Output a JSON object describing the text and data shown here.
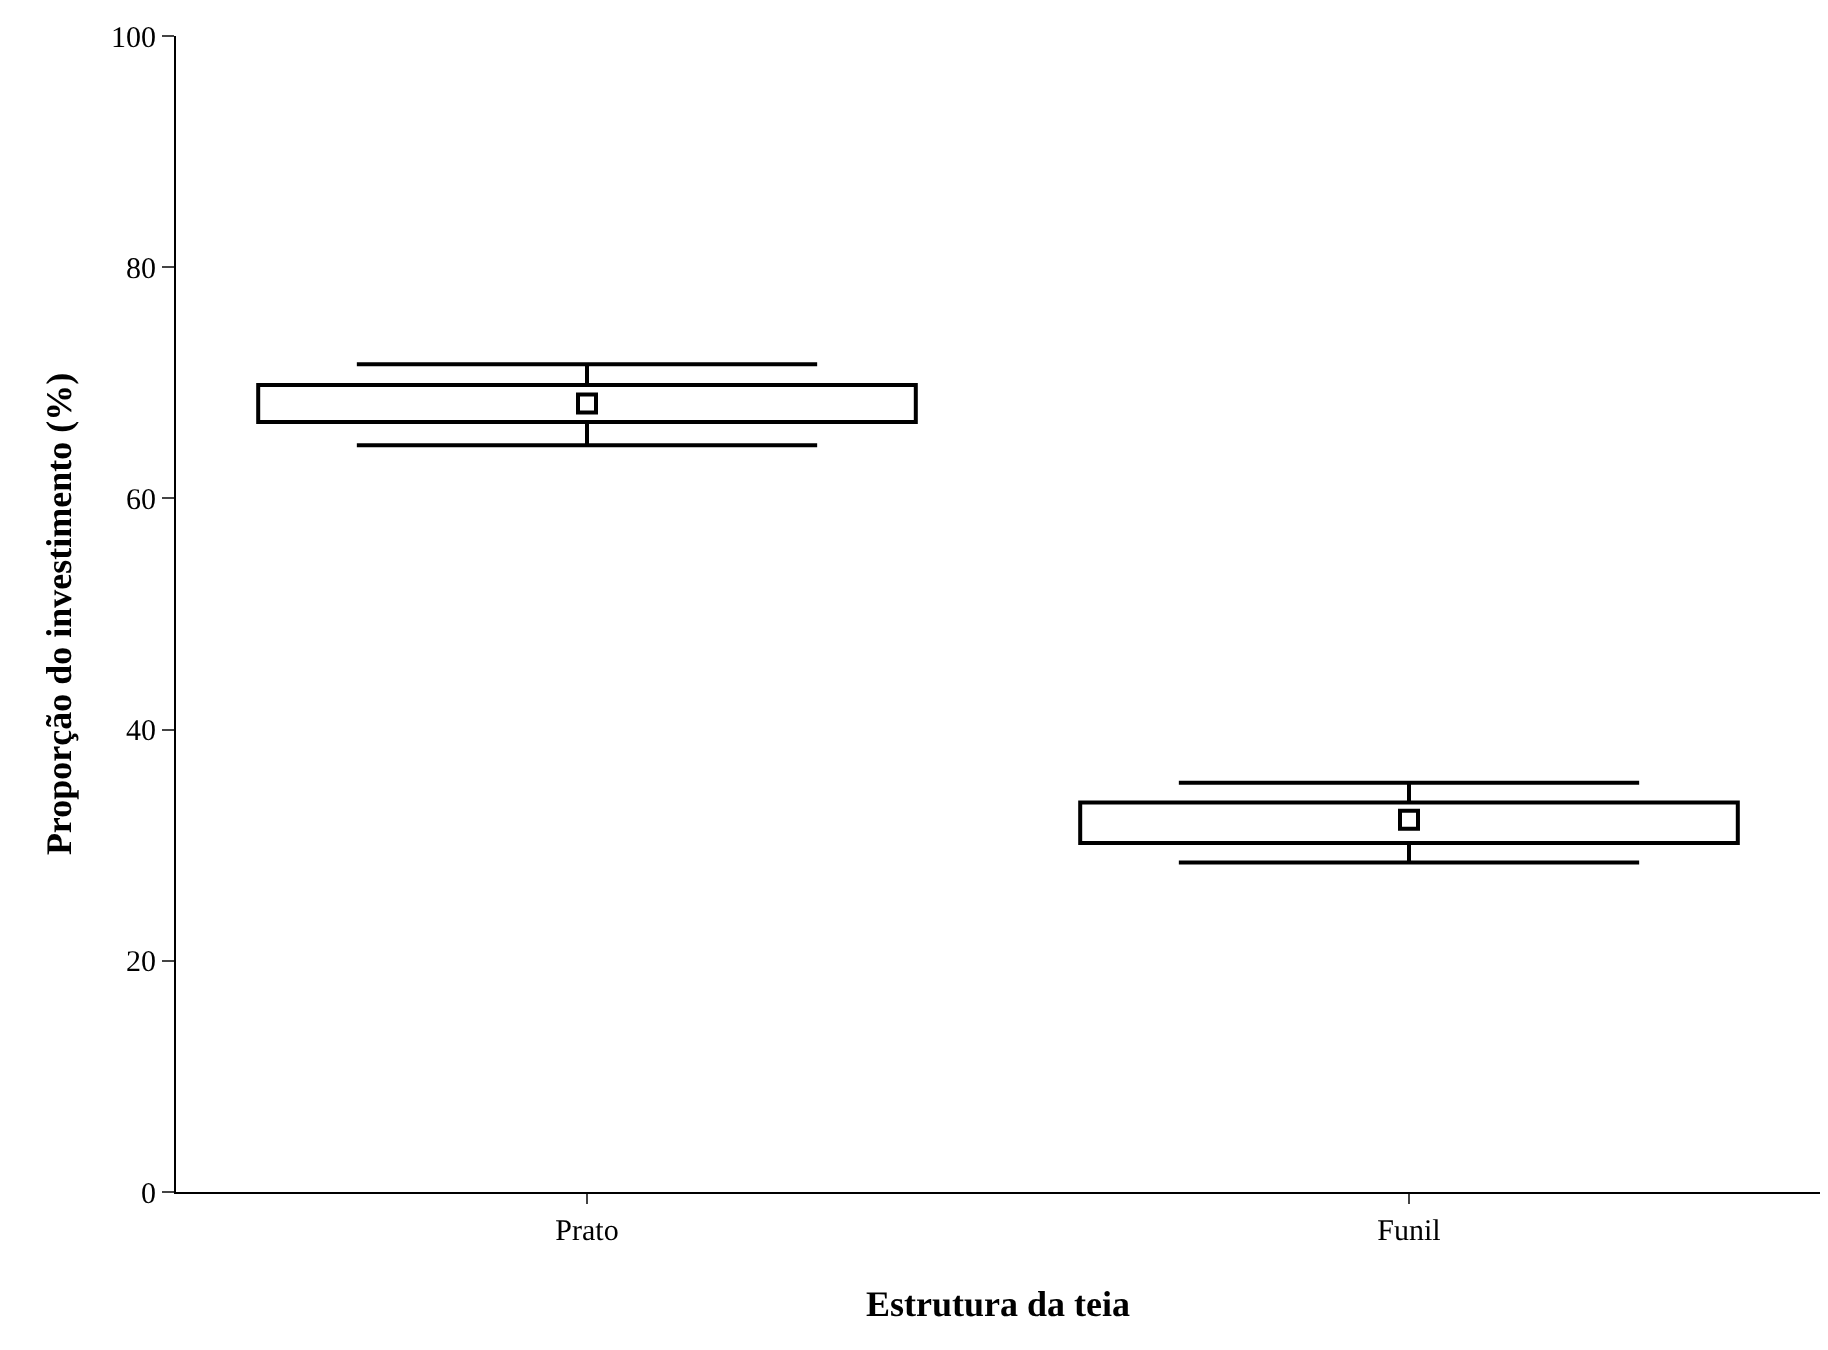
{
  "chart_data": {
    "type": "box",
    "xlabel": "Estrutura da teia",
    "ylabel": "Proporção do investimento (%)",
    "categories": [
      "Prato",
      "Funil"
    ],
    "boxes": [
      {
        "low": 64.6,
        "q1": 66.6,
        "median": 68.2,
        "q3": 69.8,
        "high": 71.6
      },
      {
        "low": 28.5,
        "q1": 30.2,
        "median": 32.2,
        "q3": 33.7,
        "high": 35.4
      }
    ],
    "ylim": [
      0,
      100
    ],
    "yticks": [
      0,
      20,
      40,
      60,
      80,
      100
    ],
    "marker": "square"
  }
}
